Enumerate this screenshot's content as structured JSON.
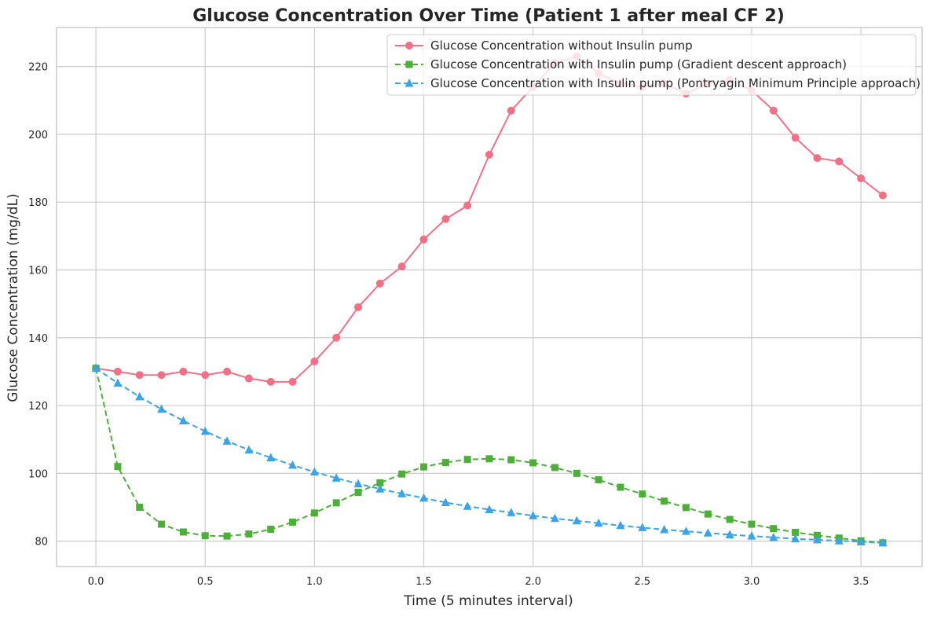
{
  "chart_data": {
    "type": "line",
    "title": "Glucose Concentration Over Time (Patient 1 after meal CF 2)",
    "xlabel": "Time (5 minutes interval)",
    "ylabel": "Glucose Concentration (mg/dL)",
    "xlim": [
      -0.18,
      3.78
    ],
    "ylim": [
      72.5,
      231.5
    ],
    "xticks": [
      0.0,
      0.5,
      1.0,
      1.5,
      2.0,
      2.5,
      3.0,
      3.5
    ],
    "xtick_labels": [
      "0.0",
      "0.5",
      "1.0",
      "1.5",
      "2.0",
      "2.5",
      "3.0",
      "3.5"
    ],
    "yticks": [
      80,
      100,
      120,
      140,
      160,
      180,
      200,
      220
    ],
    "ytick_labels": [
      "80",
      "100",
      "120",
      "140",
      "160",
      "180",
      "200",
      "220"
    ],
    "grid": true,
    "legend_position": "top-right",
    "x": [
      0.0,
      0.1,
      0.2,
      0.3,
      0.4,
      0.5,
      0.6,
      0.7,
      0.8,
      0.9,
      1.0,
      1.1,
      1.2,
      1.3,
      1.4,
      1.5,
      1.6,
      1.7,
      1.8,
      1.9,
      2.0,
      2.1,
      2.2,
      2.3,
      2.4,
      2.5,
      2.6,
      2.7,
      2.8,
      2.9,
      3.0,
      3.1,
      3.2,
      3.3,
      3.4,
      3.5,
      3.6
    ],
    "series": [
      {
        "name": "Glucose Concentration without Insulin pump",
        "color": "#f07086",
        "line_style": "solid",
        "marker": "circle",
        "values": [
          131,
          130,
          129,
          129,
          130,
          129,
          130,
          128,
          127,
          127,
          133,
          140,
          149,
          156,
          161,
          169,
          175,
          179,
          194,
          207,
          214,
          221,
          223,
          218,
          215,
          214,
          215,
          212,
          215,
          216,
          213,
          207,
          199,
          193,
          192,
          187,
          182
        ]
      },
      {
        "name": "Glucose Concentration with Insulin pump (Gradient descent approach)",
        "color": "#4daf3a",
        "line_style": "dashed",
        "marker": "square",
        "values": [
          131,
          102,
          90,
          85,
          82.7,
          81.6,
          81.5,
          82.1,
          83.5,
          85.6,
          88.3,
          91.3,
          94.4,
          97.2,
          99.8,
          101.9,
          103.2,
          104.1,
          104.3,
          104.0,
          103.1,
          101.7,
          100.0,
          98.1,
          95.9,
          93.9,
          91.8,
          89.9,
          88.0,
          86.4,
          85.0,
          83.7,
          82.6,
          81.7,
          80.9,
          80.1,
          79.5
        ]
      },
      {
        "name": "Glucose Concentration with Insulin pump (Pontryagin Minimum Principle approach)",
        "color": "#3ba3e6",
        "line_style": "dashed",
        "marker": "triangle",
        "values": [
          131,
          126.6,
          122.6,
          118.9,
          115.5,
          112.4,
          109.5,
          106.9,
          104.6,
          102.4,
          100.4,
          98.6,
          96.9,
          95.4,
          94.0,
          92.7,
          91.4,
          90.3,
          89.3,
          88.4,
          87.5,
          86.7,
          86.0,
          85.3,
          84.6,
          84.0,
          83.4,
          82.9,
          82.4,
          81.9,
          81.5,
          81.1,
          80.7,
          80.4,
          80.1,
          79.8,
          79.5
        ]
      }
    ]
  }
}
